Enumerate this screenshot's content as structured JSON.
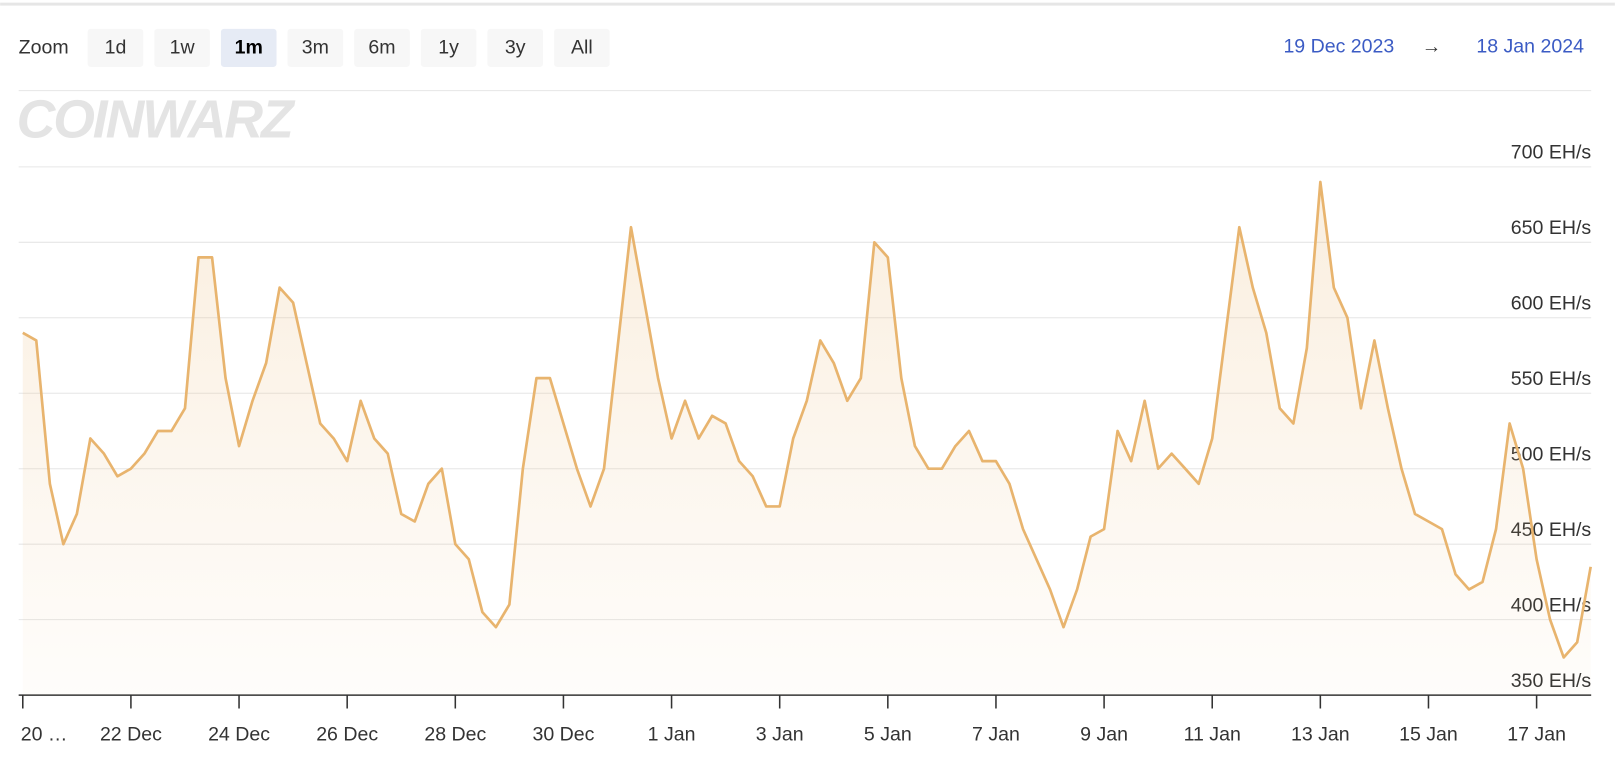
{
  "range_selector": {
    "label": "Zoom",
    "buttons": [
      "1d",
      "1w",
      "1m",
      "3m",
      "6m",
      "1y",
      "3y",
      "All"
    ],
    "selected": "1m"
  },
  "date_range": {
    "from": "19 Dec 2023",
    "separator": "→",
    "to": "18 Jan 2024"
  },
  "watermark": "COINWARZ",
  "chart_data": {
    "type": "area",
    "color": "#e8b46e",
    "categories": [
      "20 …",
      null,
      null,
      null,
      null,
      null,
      null,
      null,
      "22 Dec",
      null,
      null,
      null,
      null,
      null,
      null,
      null,
      "24 Dec",
      null,
      null,
      null,
      null,
      null,
      null,
      null,
      "26 Dec",
      null,
      null,
      null,
      null,
      null,
      null,
      null,
      "28 Dec",
      null,
      null,
      null,
      null,
      null,
      null,
      null,
      "30 Dec",
      null,
      null,
      null,
      null,
      null,
      null,
      null,
      "1 Jan",
      null,
      null,
      null,
      null,
      null,
      null,
      null,
      "3 Jan",
      null,
      null,
      null,
      null,
      null,
      null,
      null,
      "5 Jan",
      null,
      null,
      null,
      null,
      null,
      null,
      null,
      "7 Jan",
      null,
      null,
      null,
      null,
      null,
      null,
      null,
      "9 Jan",
      null,
      null,
      null,
      null,
      null,
      null,
      null,
      "11 Jan",
      null,
      null,
      null,
      null,
      null,
      null,
      null,
      "13 Jan",
      null,
      null,
      null,
      null,
      null,
      null,
      null,
      "15 Jan",
      null,
      null,
      null,
      null,
      null,
      null,
      null,
      "17 Jan",
      null,
      null,
      null,
      null
    ],
    "values": [
      590,
      585,
      490,
      450,
      470,
      520,
      510,
      495,
      500,
      510,
      525,
      525,
      540,
      640,
      640,
      560,
      515,
      545,
      570,
      620,
      610,
      570,
      530,
      520,
      505,
      545,
      520,
      510,
      470,
      465,
      490,
      500,
      450,
      440,
      405,
      395,
      410,
      500,
      560,
      560,
      530,
      500,
      475,
      500,
      580,
      660,
      610,
      560,
      520,
      545,
      520,
      535,
      530,
      505,
      495,
      475,
      475,
      520,
      545,
      585,
      570,
      545,
      560,
      650,
      640,
      560,
      515,
      500,
      500,
      515,
      525,
      505,
      505,
      490,
      460,
      440,
      420,
      395,
      420,
      455,
      460,
      525,
      505,
      545,
      500,
      510,
      500,
      490,
      520,
      590,
      660,
      620,
      590,
      540,
      530,
      580,
      690,
      620,
      600,
      540,
      585,
      540,
      500,
      470,
      465,
      460,
      430,
      420,
      425,
      460,
      530,
      500,
      440,
      400,
      375,
      385,
      435
    ],
    "ylim": [
      350,
      700
    ],
    "yticks": [
      {
        "value": 350,
        "label": "350 EH/s"
      },
      {
        "value": 400,
        "label": "400 EH/s"
      },
      {
        "value": 450,
        "label": "450 EH/s"
      },
      {
        "value": 500,
        "label": "500 EH/s"
      },
      {
        "value": 550,
        "label": "550 EH/s"
      },
      {
        "value": 600,
        "label": "600 EH/s"
      },
      {
        "value": 650,
        "label": "650 EH/s"
      },
      {
        "value": 700,
        "label": "700 EH/s"
      }
    ],
    "grid": true
  }
}
